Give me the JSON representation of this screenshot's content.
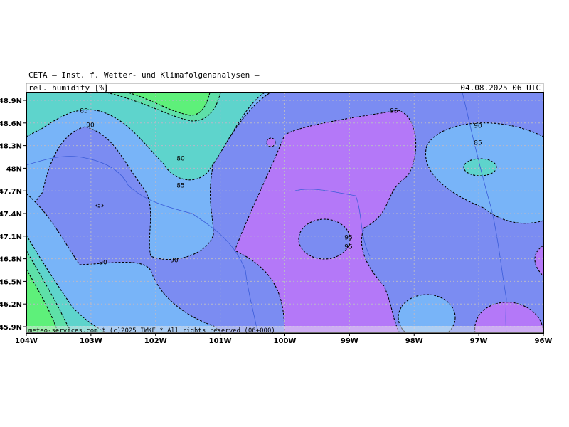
{
  "header": {
    "title": "CETA — Inst. f. Wetter- und Klimafolgenanalysen —",
    "variable": "rel. humidity [%]",
    "valid_time": "04.08.2025 06 UTC"
  },
  "map": {
    "lat_labels": [
      "48.9N",
      "48.6N",
      "48.3N",
      "48N",
      "47.7N",
      "47.4N",
      "47.1N",
      "46.8N",
      "46.5N",
      "46.2N",
      "45.9N"
    ],
    "lon_labels": [
      "104W",
      "103W",
      "102W",
      "101W",
      "100W",
      "99W",
      "98W",
      "97W",
      "96W"
    ],
    "contour_labels": [
      "85",
      "90",
      "80",
      "85",
      "90",
      "90",
      "95",
      "95",
      "95",
      "90",
      "85"
    ],
    "footer": "meteo-services.com * (c)2025 IWKF * All rights reserved (06+000)"
  }
}
